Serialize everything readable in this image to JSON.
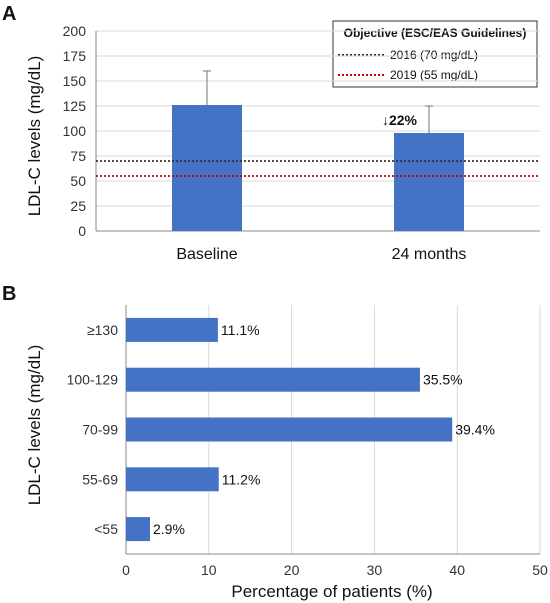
{
  "colors": {
    "bar": "#4472c4",
    "error_bar": "#8a8a8a",
    "line_2016": "#333333",
    "line_2019": "#c00000",
    "grid": "#d9d9d9"
  },
  "chart_data": [
    {
      "type": "bar",
      "panel_label": "A",
      "ylabel": "LDL-C levels (mg/dL)",
      "ylim": [
        0,
        200
      ],
      "yticks": [
        0,
        25,
        50,
        75,
        100,
        125,
        150,
        175,
        200
      ],
      "categories": [
        "Baseline",
        "24 months"
      ],
      "values": [
        126,
        98
      ],
      "error_upper": [
        160,
        125
      ],
      "annotation": "↓22%",
      "grid": true,
      "legend_placement": "top-right",
      "legend": {
        "title": "Objective (ESC/EAS Guidelines)",
        "items": [
          {
            "label": "2016 (70 mg/dL)",
            "value": 70,
            "style": "dotted",
            "color": "#333333"
          },
          {
            "label": "2019 (55 mg/dL)",
            "value": 55,
            "style": "dotted",
            "color": "#c00000"
          }
        ]
      }
    },
    {
      "type": "bar",
      "orientation": "horizontal",
      "panel_label": "B",
      "ylabel": "LDL-C levels (mg/dL)",
      "xlabel": "Percentage of patients (%)",
      "xlim": [
        0,
        50
      ],
      "xticks": [
        0,
        10,
        20,
        30,
        40,
        50
      ],
      "categories": [
        "≥130",
        "100-129",
        "70-99",
        "55-69",
        "<55"
      ],
      "values": [
        11.1,
        35.5,
        39.4,
        11.2,
        2.9
      ],
      "value_labels": [
        "11.1%",
        "35.5%",
        "39.4%",
        "11.2%",
        "2.9%"
      ],
      "grid": true
    }
  ]
}
